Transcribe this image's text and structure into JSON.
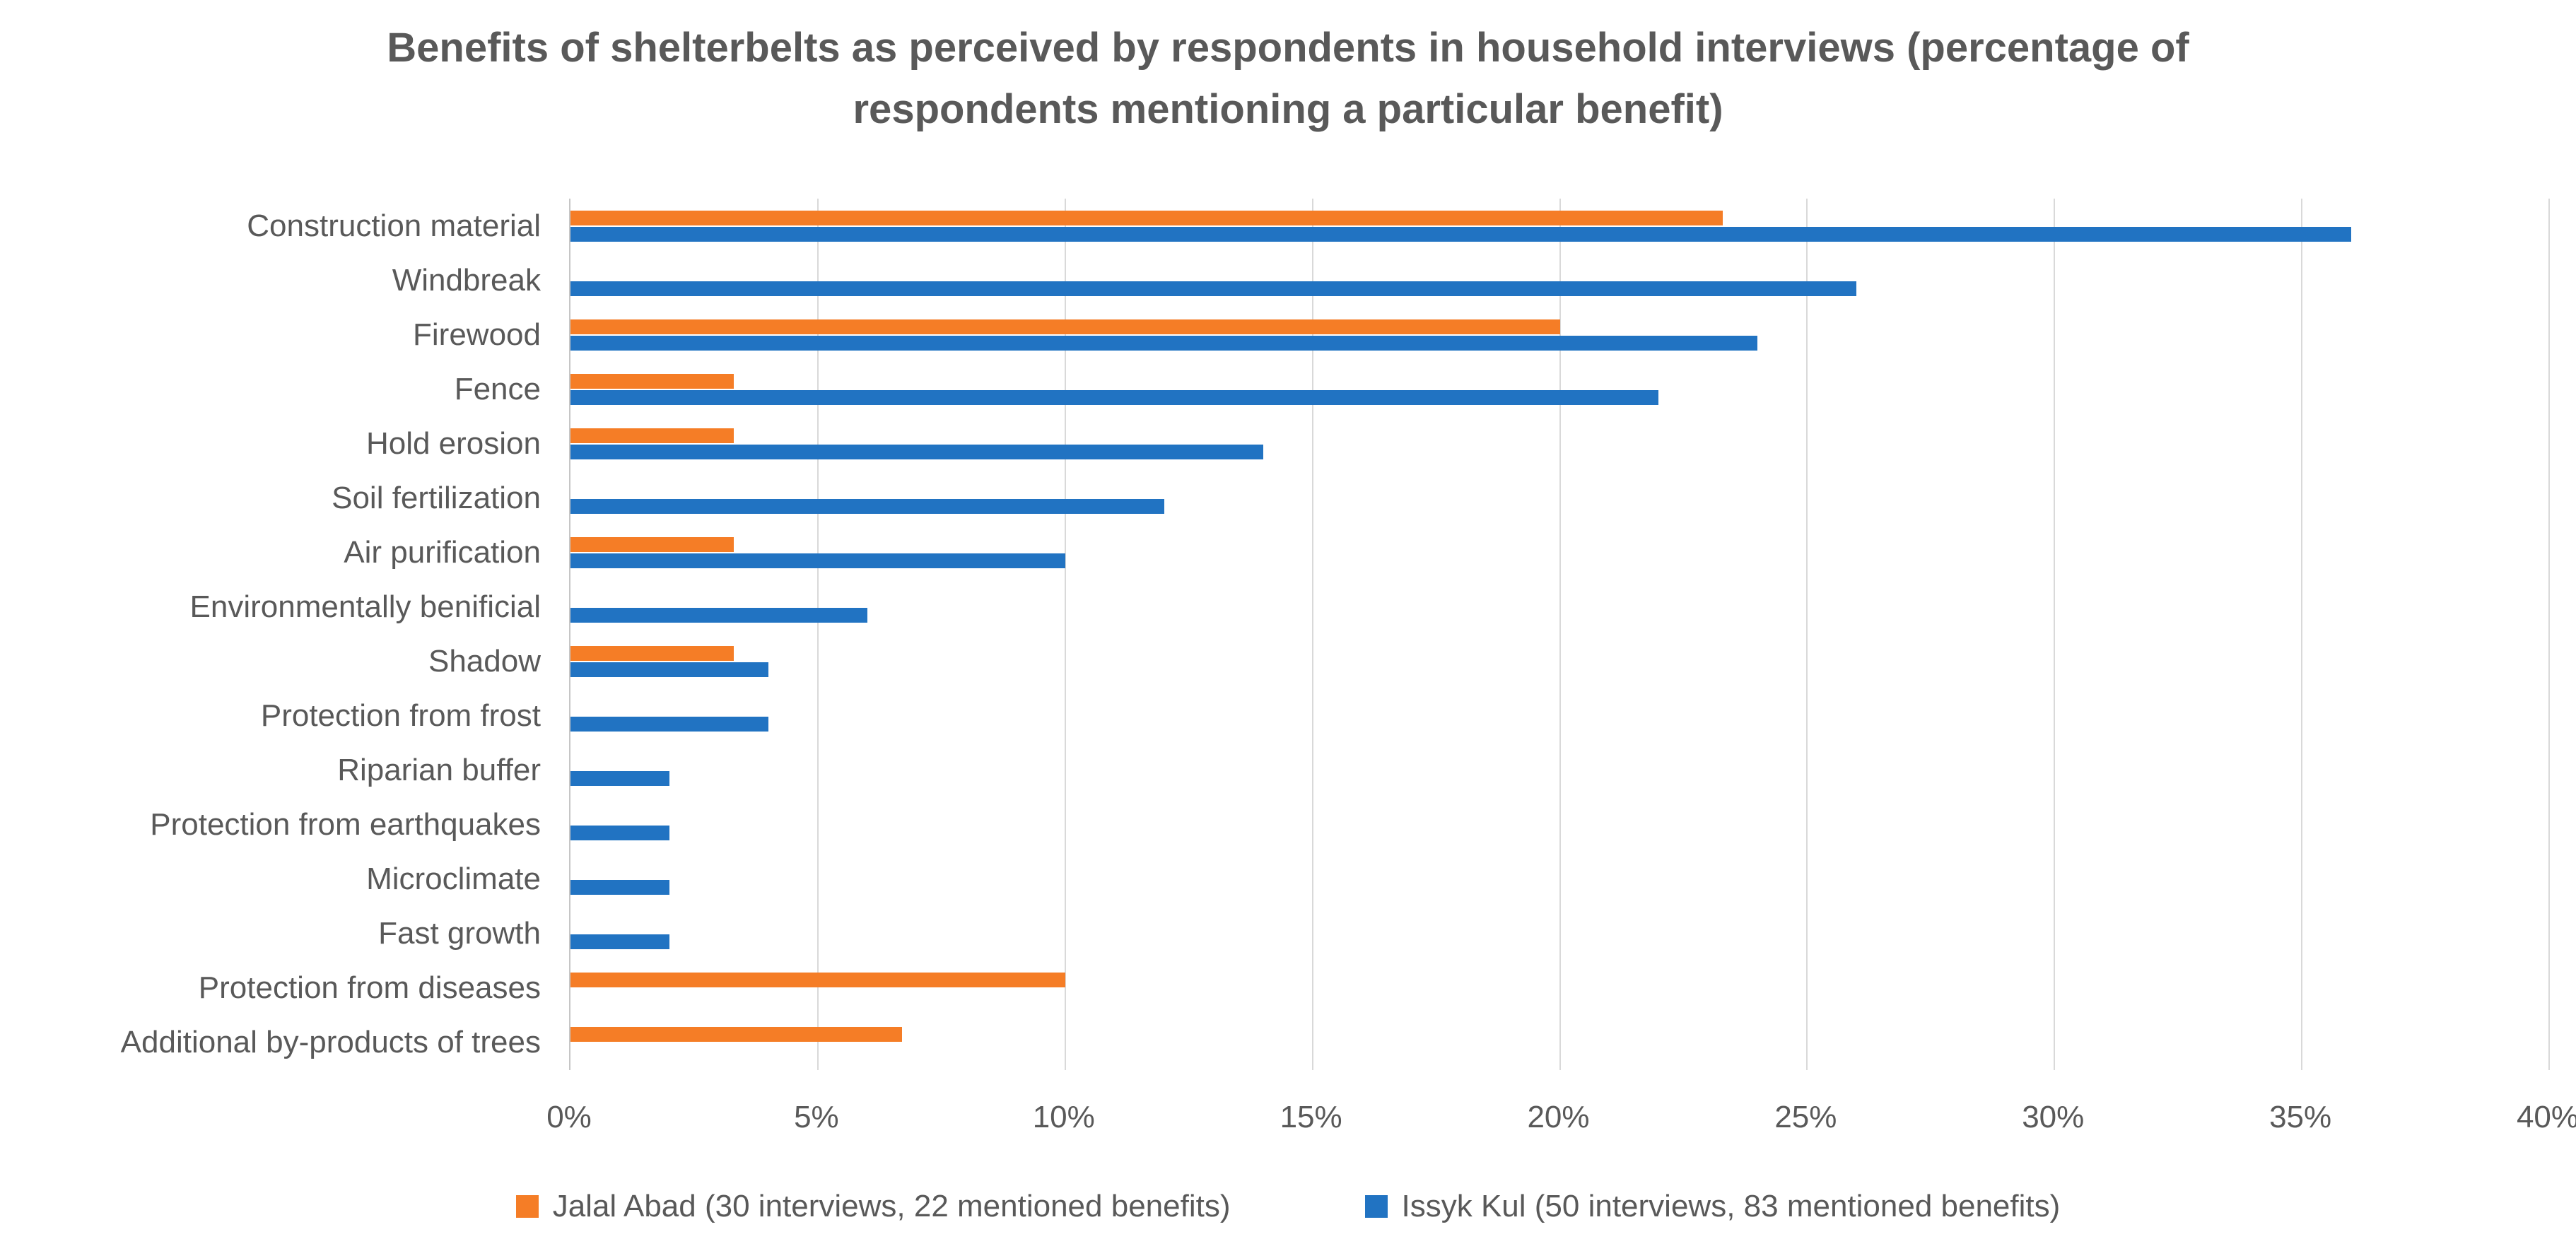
{
  "title": "Benefits of shelterbelts as perceived by respondents in household interviews (percentage of respondents mentioning a particular benefit)",
  "chart_data": {
    "type": "bar",
    "orientation": "horizontal",
    "title": "Benefits of shelterbelts as perceived by respondents in household interviews (percentage of respondents mentioning a particular benefit)",
    "categories": [
      "Construction material",
      "Windbreak",
      "Firewood",
      "Fence",
      "Hold erosion",
      "Soil fertilization",
      "Air purification",
      "Environmentally benificial",
      "Shadow",
      "Protection from frost",
      "Riparian buffer",
      "Protection from earthquakes",
      "Microclimate",
      "Fast growth",
      "Protection from diseases",
      "Additional by-products of trees"
    ],
    "series": [
      {
        "name": "Jalal Abad (30 interviews, 22 mentioned benefits)",
        "color": "#f57d26",
        "values": [
          23.3,
          0,
          20,
          3.3,
          3.3,
          0,
          3.3,
          0,
          3.3,
          0,
          0,
          0,
          0,
          0,
          10,
          6.7
        ]
      },
      {
        "name": "Issyk Kul (50 interviews, 83 mentioned benefits)",
        "color": "#2173c2",
        "values": [
          36,
          26,
          24,
          22,
          14,
          12,
          10,
          6,
          4,
          4,
          2,
          2,
          2,
          2,
          0,
          0
        ]
      }
    ],
    "xlim": [
      0,
      40
    ],
    "x_ticks": [
      "0%",
      "5%",
      "10%",
      "15%",
      "20%",
      "25%",
      "30%",
      "35%",
      "40%"
    ],
    "x_tick_values": [
      0,
      5,
      10,
      15,
      20,
      25,
      30,
      35,
      40
    ],
    "grid": "vertical-gridlines-on",
    "legend_position": "bottom",
    "text_color": "#595959",
    "gridline_color": "#d9d9d9",
    "background_color": "#ffffff"
  }
}
